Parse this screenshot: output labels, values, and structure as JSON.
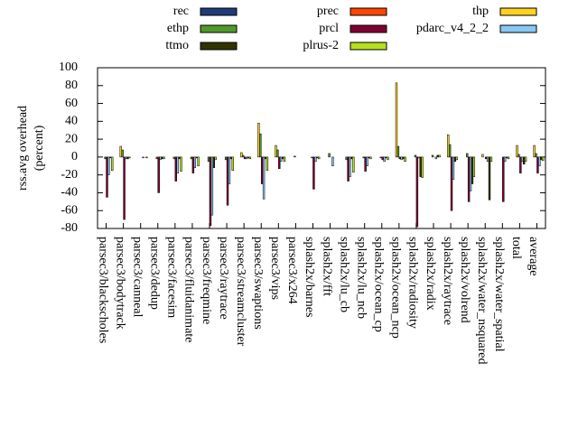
{
  "chart_data": {
    "type": "bar",
    "ylabel": [
      "rss.avg overhead",
      "(percent)"
    ],
    "ylim": [
      -80,
      100
    ],
    "yticks": [
      -80,
      -60,
      -40,
      -20,
      0,
      20,
      40,
      60,
      80,
      100
    ],
    "legend_position": "top",
    "categories": [
      "parsec3/blackscholes",
      "parsec3/bodytrack",
      "parsec3/canneal",
      "parsec3/dedup",
      "parsec3/facesim",
      "parsec3/fluidanimate",
      "parsec3/freqmine",
      "parsec3/raytrace",
      "parsec3/streamcluster",
      "parsec3/swaptions",
      "parsec3/vips",
      "parsec3/x264",
      "splash2x/barnes",
      "splash2x/fft",
      "splash2x/lu_cb",
      "splash2x/lu_ncb",
      "splash2x/ocean_cp",
      "splash2x/ocean_ncp",
      "splash2x/radiosity",
      "splash2x/radix",
      "splash2x/raytrace",
      "splash2x/volrend",
      "splash2x/water_nsquared",
      "splash2x/water_spatial",
      "total",
      "average"
    ],
    "series": [
      {
        "name": "rec",
        "color": "#1f3c7a",
        "values": [
          0,
          0,
          0,
          0,
          0,
          0,
          0,
          0,
          0,
          0,
          0,
          0,
          0,
          0,
          0,
          0,
          0,
          0,
          0,
          0,
          0,
          0,
          0,
          0,
          0,
          0
        ]
      },
      {
        "name": "prec",
        "color": "#ff4500",
        "values": [
          0,
          0,
          0,
          0,
          0,
          0,
          0,
          0,
          0,
          0,
          0,
          0,
          0,
          0,
          0,
          0,
          0,
          0,
          0,
          0,
          0,
          0,
          0,
          0,
          0,
          0
        ]
      },
      {
        "name": "thp",
        "color": "#ffd21f",
        "values": [
          0,
          12,
          0,
          0,
          0,
          0,
          0,
          0,
          5,
          38,
          13,
          0,
          0,
          0,
          0,
          0,
          0,
          83,
          0,
          0,
          25,
          0,
          3,
          0,
          13,
          13
        ]
      },
      {
        "name": "ethp",
        "color": "#4f9a2a",
        "values": [
          -2,
          8,
          0,
          -2,
          -2,
          -2,
          -5,
          -3,
          2,
          26,
          8,
          1,
          -1,
          4,
          -3,
          -1,
          -1,
          12,
          2,
          2,
          14,
          4,
          0,
          0,
          3,
          4
        ]
      },
      {
        "name": "prcl",
        "color": "#800030",
        "values": [
          -45,
          -70,
          0,
          -40,
          -27,
          -18,
          -77,
          -54,
          -2,
          -30,
          -13,
          0,
          -36,
          0,
          -27,
          -16,
          -3,
          -2,
          -78,
          0,
          -60,
          -50,
          -2,
          -50,
          -18,
          -18
        ]
      },
      {
        "name": "pdarc_v4_2_2",
        "color": "#87c8f5",
        "values": [
          -20,
          -2,
          -1,
          -3,
          -18,
          -12,
          -65,
          -30,
          -2,
          -47,
          -5,
          0,
          -5,
          -10,
          -22,
          -10,
          -5,
          -3,
          -1,
          -2,
          -25,
          -38,
          -5,
          -5,
          -5,
          -10
        ]
      },
      {
        "name": "ttmo",
        "color": "#333300",
        "values": [
          -1,
          -2,
          0,
          -2,
          -2,
          -1,
          -12,
          -2,
          -1,
          -2,
          -2,
          0,
          -1,
          0,
          -2,
          -1,
          -1,
          -2,
          -22,
          2,
          -5,
          -30,
          -48,
          -1,
          -8,
          -3
        ]
      },
      {
        "name": "plrus-2",
        "color": "#b4e01e",
        "values": [
          -15,
          -1,
          -1,
          -2,
          -16,
          -10,
          -3,
          -15,
          -2,
          -15,
          -5,
          0,
          -2,
          0,
          -17,
          -2,
          -3,
          -5,
          -23,
          2,
          -3,
          -22,
          -5,
          -2,
          -5,
          -4
        ]
      }
    ]
  }
}
